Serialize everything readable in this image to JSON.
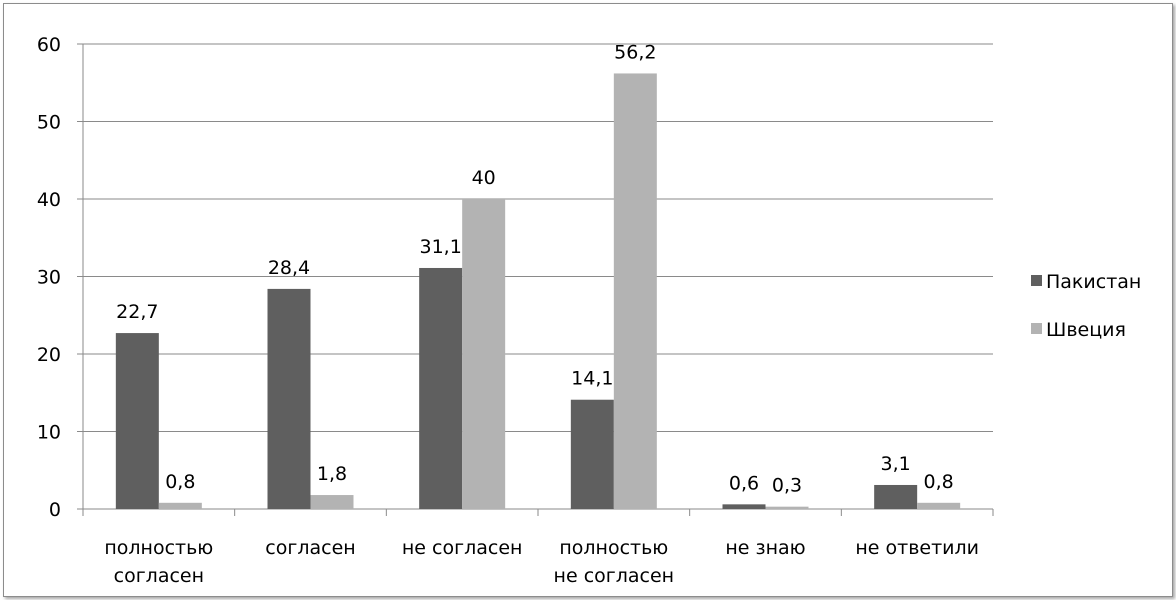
{
  "chart_data": {
    "type": "bar",
    "categories": [
      [
        "полностью",
        "согласен"
      ],
      [
        "согласен"
      ],
      [
        "не согласен"
      ],
      [
        "полностью",
        "не согласен"
      ],
      [
        "не знаю"
      ],
      [
        "не ответили"
      ]
    ],
    "series": [
      {
        "name": "Пакистан",
        "color": "#5f5f5f",
        "values": [
          22.7,
          28.4,
          31.1,
          14.1,
          0.6,
          3.1
        ],
        "labels": [
          "22,7",
          "28,4",
          "31,1",
          "14,1",
          "0,6",
          "3,1"
        ]
      },
      {
        "name": "Швеция",
        "color": "#b3b3b3",
        "values": [
          0.8,
          1.8,
          40,
          56.2,
          0.3,
          0.8
        ],
        "labels": [
          "0,8",
          "1,8",
          "40",
          "56,2",
          "0,3",
          "0,8"
        ]
      }
    ],
    "yticks": [
      "0",
      "10",
      "20",
      "30",
      "40",
      "50",
      "60"
    ],
    "ylim": [
      0,
      60
    ],
    "grid": true,
    "legend_position": "right",
    "title": "",
    "xlabel": "",
    "ylabel": ""
  }
}
